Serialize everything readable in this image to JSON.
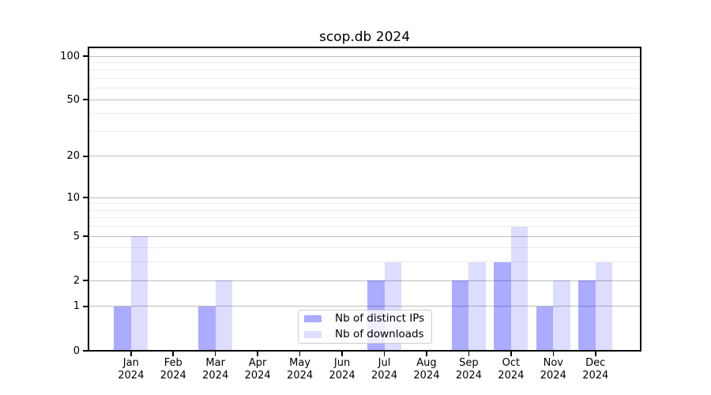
{
  "figure": {
    "background": "#ffffff"
  },
  "chart_data": {
    "type": "bar",
    "title": "scop.db 2024",
    "categories": [
      "Jan",
      "Feb",
      "Mar",
      "Apr",
      "May",
      "Jun",
      "Jul",
      "Aug",
      "Sep",
      "Oct",
      "Nov",
      "Dec"
    ],
    "category_year": "2024",
    "series": [
      {
        "name": "Nb of distinct IPs",
        "color": "rgba(0,0,255,0.33)",
        "values": [
          1,
          0,
          1,
          0,
          0,
          0,
          2,
          0,
          2,
          3,
          1,
          2
        ]
      },
      {
        "name": "Nb of downloads",
        "color": "rgba(0,0,255,0.135)",
        "values": [
          5,
          0,
          2,
          0,
          0,
          0,
          3,
          0,
          3,
          6,
          2,
          3
        ]
      }
    ],
    "yscale": "log1p",
    "ylim": [
      0,
      115
    ],
    "y_major_ticks": [
      0,
      1,
      2,
      5,
      10,
      20,
      50,
      100
    ],
    "y_minor_ticks": [
      3,
      4,
      6,
      7,
      8,
      9,
      30,
      40,
      60,
      70,
      80,
      90
    ],
    "grid": {
      "major_color": "#bdbdbd",
      "minor_color": "#ececec",
      "enabled": true
    },
    "legend": {
      "location": "inside-bottom-center"
    },
    "axis_color": "#000000"
  }
}
